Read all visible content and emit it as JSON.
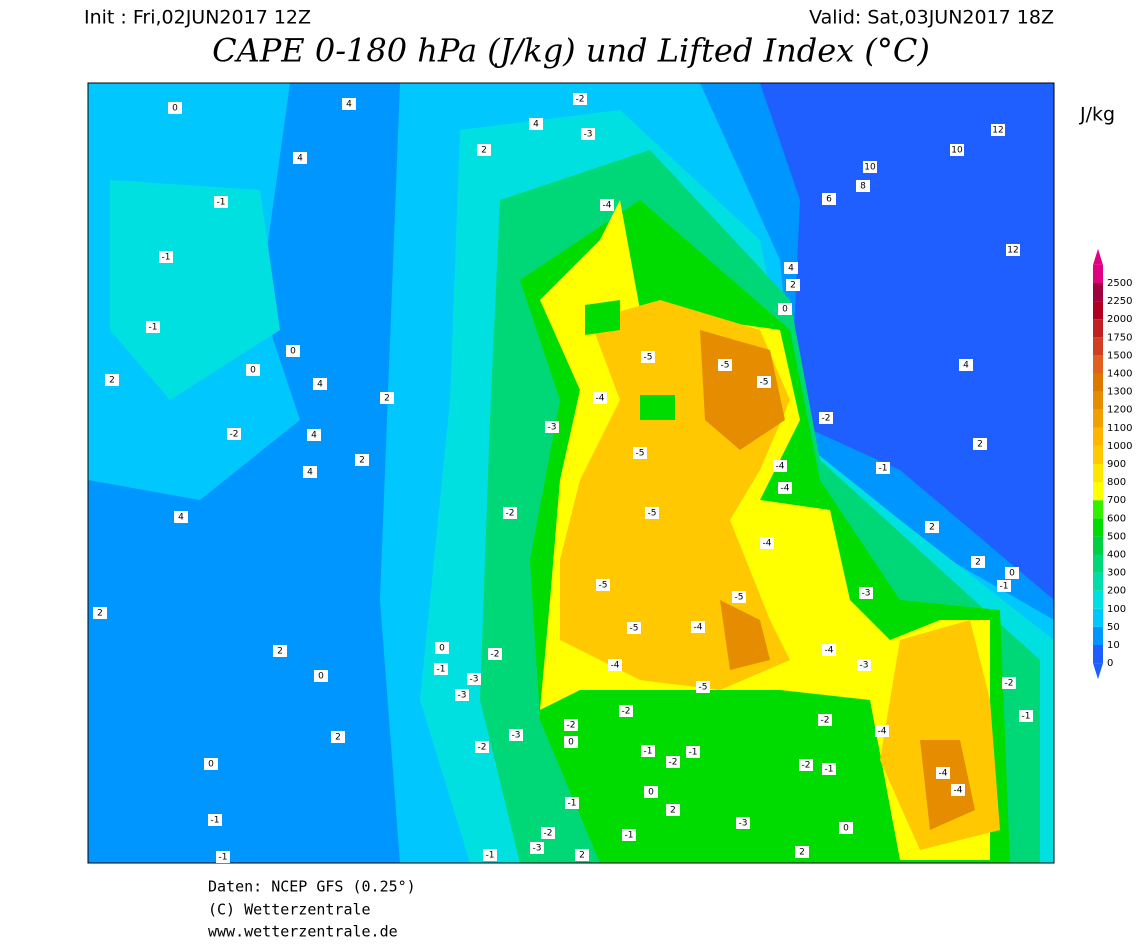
{
  "header": {
    "init": "Init : Fri,02JUN2017 12Z",
    "valid": "Valid: Sat,03JUN2017 18Z",
    "title": "CAPE 0-180 hPa (J/kg) und Lifted Index (°C)"
  },
  "legend": {
    "unit": "J/kg",
    "levels": [
      {
        "value": 0,
        "color": "#1f5fff"
      },
      {
        "value": 10,
        "color": "#0096ff"
      },
      {
        "value": 50,
        "color": "#00c8ff"
      },
      {
        "value": 100,
        "color": "#00e0e0"
      },
      {
        "value": 200,
        "color": "#00dcaa"
      },
      {
        "value": 300,
        "color": "#00d878"
      },
      {
        "value": 400,
        "color": "#00d040"
      },
      {
        "value": 500,
        "color": "#00dc00"
      },
      {
        "value": 600,
        "color": "#32f000"
      },
      {
        "value": 700,
        "color": "#ffff00"
      },
      {
        "value": 800,
        "color": "#ffe600"
      },
      {
        "value": 900,
        "color": "#ffc800"
      },
      {
        "value": 1000,
        "color": "#ffb400"
      },
      {
        "value": 1100,
        "color": "#f0a000"
      },
      {
        "value": 1200,
        "color": "#e68c00"
      },
      {
        "value": 1300,
        "color": "#dc7800"
      },
      {
        "value": 1400,
        "color": "#e06020"
      },
      {
        "value": 1500,
        "color": "#d04020"
      },
      {
        "value": 1750,
        "color": "#c02020"
      },
      {
        "value": 2000,
        "color": "#b00020"
      },
      {
        "value": 2250,
        "color": "#a00040"
      },
      {
        "value": 2500,
        "color": "#e00080"
      }
    ]
  },
  "contour_labels": [
    -2,
    -3,
    4,
    4,
    0,
    2,
    4,
    -1,
    -1,
    -1,
    0,
    0,
    4,
    2,
    4,
    -2,
    2,
    4,
    4,
    2,
    -4,
    -5,
    -5,
    -5,
    -4,
    -3,
    -5,
    -5,
    -2,
    -5,
    -5,
    -5,
    -4,
    -4,
    -4,
    -4,
    -2,
    -1,
    -3,
    -4,
    -3,
    -4,
    -5,
    -2,
    -1,
    0,
    -3,
    -3,
    -2,
    -2,
    -3,
    -2,
    0,
    -1,
    -1,
    -2,
    -2,
    -1,
    -2,
    -4,
    -4,
    -4,
    -2,
    -1,
    -1,
    0,
    2,
    2,
    2,
    4,
    12,
    12,
    10,
    10,
    8,
    6,
    4,
    2,
    0,
    2,
    2,
    0,
    2,
    0,
    -1,
    -1,
    -1,
    0,
    2,
    -3,
    -2,
    -1,
    -3,
    -1,
    2,
    2,
    0
  ],
  "footer": {
    "lines": [
      "Daten: NCEP GFS (0.25°)",
      "(C) Wetterzentrale",
      "www.wetterzentrale.de"
    ]
  }
}
